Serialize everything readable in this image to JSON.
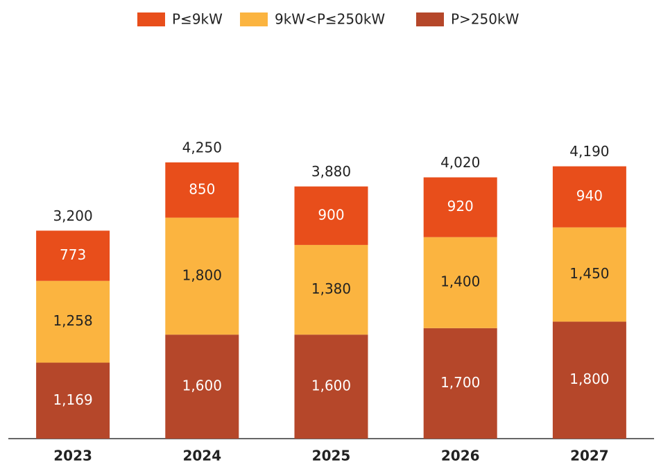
{
  "chart_data": {
    "type": "stacked_bar",
    "categories": [
      "2023",
      "2024",
      "2025",
      "2026",
      "2027"
    ],
    "series": [
      {
        "name": "P≤9kW",
        "color": "#e84e1b",
        "values": [
          773,
          850,
          900,
          920,
          940
        ]
      },
      {
        "name": "9kW<P≤250kW",
        "color": "#fbb440",
        "values": [
          1258,
          1800,
          1380,
          1400,
          1450
        ],
        "value_labels": [
          "1,258",
          "1,800",
          "1,380",
          "1,400",
          "1,450"
        ]
      },
      {
        "name": "P>250kW",
        "color": "#b5472a",
        "values": [
          1169,
          1600,
          1600,
          1700,
          1800
        ],
        "value_labels": [
          "1,169",
          "1,600",
          "1,600",
          "1,700",
          "1,800"
        ]
      }
    ],
    "totals": [
      3200,
      4250,
      3880,
      4020,
      4190
    ],
    "total_labels": [
      "3,200",
      "4,250",
      "3,880",
      "4,020",
      "4,190"
    ],
    "legend": "top"
  }
}
